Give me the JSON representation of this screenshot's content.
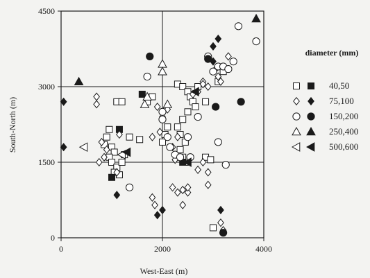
{
  "chart_data": {
    "type": "scatter",
    "title": "",
    "xlabel": "West-East (m)",
    "ylabel": "South-North (m)",
    "xlim": [
      0,
      4000
    ],
    "ylim": [
      0,
      4500
    ],
    "xticks": [
      0,
      2000,
      4000
    ],
    "yticks": [
      0,
      1500,
      3000,
      4500
    ],
    "grid": "lines at 2000 (x) and 1500, 3000 (y)",
    "legend": {
      "title": "diameter (mm)",
      "placement": "right",
      "entries": [
        {
          "open_label": "40",
          "filled_label": "50",
          "marker": "square"
        },
        {
          "open_label": "75",
          "filled_label": "100",
          "marker": "diamond"
        },
        {
          "open_label": "150",
          "filled_label": "200",
          "marker": "circle"
        },
        {
          "open_label": "250",
          "filled_label": "400",
          "marker": "triangle-up"
        },
        {
          "open_label": "500",
          "filled_label": "600",
          "marker": "triangle-left"
        }
      ]
    },
    "series": [
      {
        "name": "40",
        "marker": "square",
        "filled": false,
        "points": [
          [
            900,
            2000
          ],
          [
            950,
            2150
          ],
          [
            1000,
            1800
          ],
          [
            1050,
            1700
          ],
          [
            950,
            1600
          ],
          [
            1000,
            1500
          ],
          [
            1100,
            1400
          ],
          [
            1050,
            1300
          ],
          [
            1150,
            1250
          ],
          [
            1200,
            1500
          ],
          [
            1250,
            1650
          ],
          [
            850,
            1850
          ],
          [
            1100,
            2700
          ],
          [
            1200,
            2700
          ],
          [
            1350,
            2000
          ],
          [
            1550,
            1950
          ],
          [
            1700,
            2700
          ],
          [
            1800,
            2800
          ],
          [
            2050,
            2050
          ],
          [
            2100,
            2200
          ],
          [
            2000,
            1900
          ],
          [
            2300,
            2200
          ],
          [
            2350,
            2050
          ],
          [
            2400,
            2350
          ],
          [
            2450,
            1900
          ],
          [
            2500,
            2500
          ],
          [
            2350,
            1750
          ],
          [
            2400,
            1600
          ],
          [
            2450,
            1500
          ],
          [
            2300,
            3050
          ],
          [
            2400,
            3000
          ],
          [
            2500,
            2900
          ],
          [
            2550,
            2800
          ],
          [
            2600,
            2700
          ],
          [
            2650,
            2600
          ],
          [
            2700,
            3000
          ],
          [
            2850,
            2700
          ],
          [
            2850,
            1600
          ],
          [
            2950,
            1550
          ],
          [
            3100,
            3100
          ],
          [
            3200,
            3300
          ],
          [
            3000,
            200
          ]
        ]
      },
      {
        "name": "50",
        "marker": "square",
        "filled": true,
        "points": [
          [
            1000,
            1200
          ],
          [
            1600,
            2850
          ],
          [
            1150,
            2150
          ],
          [
            2400,
            1500
          ]
        ]
      },
      {
        "name": "75",
        "marker": "diamond",
        "filled": false,
        "points": [
          [
            700,
            2800
          ],
          [
            700,
            2650
          ],
          [
            750,
            1500
          ],
          [
            850,
            1600
          ],
          [
            900,
            1750
          ],
          [
            800,
            1900
          ],
          [
            1150,
            2050
          ],
          [
            1100,
            1300
          ],
          [
            1900,
            2600
          ],
          [
            2000,
            2400
          ],
          [
            2100,
            2550
          ],
          [
            1950,
            2100
          ],
          [
            1800,
            2000
          ],
          [
            2200,
            1800
          ],
          [
            2300,
            2000
          ],
          [
            2250,
            1550
          ],
          [
            2200,
            1000
          ],
          [
            2300,
            900
          ],
          [
            2400,
            950
          ],
          [
            2500,
            900
          ],
          [
            2500,
            1000
          ],
          [
            2400,
            650
          ],
          [
            1800,
            800
          ],
          [
            1850,
            650
          ],
          [
            2600,
            2850
          ],
          [
            2800,
            3100
          ],
          [
            2900,
            3000
          ],
          [
            3050,
            3350
          ],
          [
            3100,
            3200
          ],
          [
            3150,
            3100
          ],
          [
            3300,
            3600
          ],
          [
            2700,
            1350
          ],
          [
            2800,
            1500
          ],
          [
            2900,
            1300
          ],
          [
            2900,
            1050
          ],
          [
            3150,
            300
          ],
          [
            3200,
            150
          ],
          [
            2700,
            2900
          ],
          [
            2800,
            3050
          ]
        ]
      },
      {
        "name": "100",
        "marker": "diamond",
        "filled": true,
        "points": [
          [
            50,
            2700
          ],
          [
            50,
            1800
          ],
          [
            1100,
            850
          ],
          [
            1900,
            450
          ],
          [
            2000,
            550
          ],
          [
            3000,
            3800
          ],
          [
            3100,
            3950
          ],
          [
            3150,
            550
          ],
          [
            2900,
            3550
          ],
          [
            3000,
            3500
          ]
        ]
      },
      {
        "name": "150",
        "marker": "circle",
        "filled": false,
        "points": [
          [
            1350,
            1000
          ],
          [
            1700,
            3200
          ],
          [
            2000,
            2500
          ],
          [
            2000,
            2350
          ],
          [
            2100,
            2000
          ],
          [
            2150,
            1800
          ],
          [
            2250,
            1650
          ],
          [
            2350,
            1600
          ],
          [
            2500,
            2000
          ],
          [
            2700,
            2400
          ],
          [
            2900,
            3600
          ],
          [
            3000,
            3300
          ],
          [
            3100,
            3400
          ],
          [
            3200,
            3400
          ],
          [
            3300,
            3350
          ],
          [
            3400,
            3500
          ],
          [
            3500,
            4200
          ],
          [
            3850,
            3900
          ],
          [
            3100,
            1900
          ],
          [
            3250,
            1450
          ],
          [
            2550,
            1600
          ]
        ]
      },
      {
        "name": "200",
        "marker": "circle",
        "filled": true,
        "points": [
          [
            1750,
            3600
          ],
          [
            2900,
            3550
          ],
          [
            3050,
            2600
          ],
          [
            3550,
            2700
          ],
          [
            3200,
            100
          ]
        ]
      },
      {
        "name": "250",
        "marker": "triangle-up",
        "filled": false,
        "points": [
          [
            1650,
            2650
          ],
          [
            1700,
            2800
          ],
          [
            2000,
            3450
          ],
          [
            2000,
            3300
          ],
          [
            2100,
            2650
          ]
        ]
      },
      {
        "name": "400",
        "marker": "triangle-up",
        "filled": true,
        "points": [
          [
            350,
            3100
          ],
          [
            3850,
            4350
          ]
        ]
      },
      {
        "name": "500",
        "marker": "triangle-left",
        "filled": false,
        "points": [
          [
            450,
            1800
          ],
          [
            1200,
            1650
          ]
        ]
      },
      {
        "name": "600",
        "marker": "triangle-left",
        "filled": true,
        "points": [
          [
            2650,
            2900
          ],
          [
            1300,
            1700
          ],
          [
            2500,
            1500
          ]
        ]
      }
    ]
  }
}
